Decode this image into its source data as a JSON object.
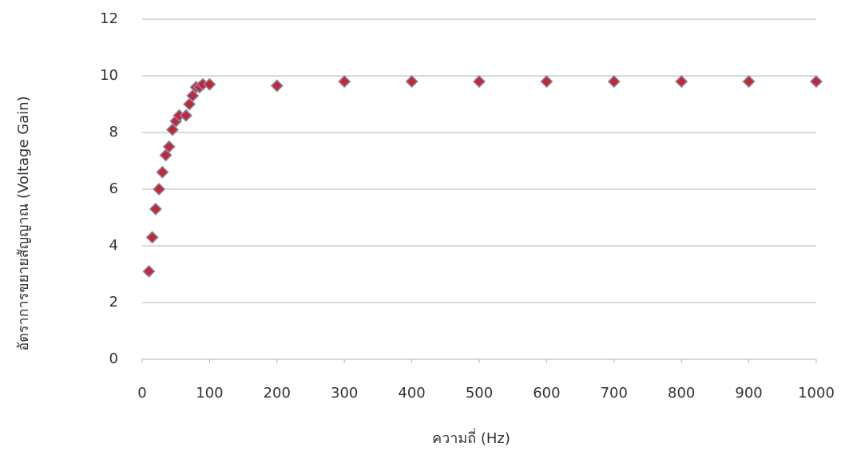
{
  "chart_data": {
    "type": "scatter",
    "x_label": "ความถี่ (Hz)",
    "y_label": "อัตราการขยายสัญญาณ (Voltage Gain)",
    "x": [
      10,
      15,
      20,
      25,
      30,
      35,
      40,
      45,
      50,
      55,
      65,
      70,
      75,
      80,
      85,
      90,
      100,
      200,
      300,
      400,
      500,
      600,
      700,
      800,
      900,
      1000
    ],
    "values": [
      3.1,
      4.3,
      5.3,
      6.0,
      6.6,
      7.2,
      7.5,
      8.1,
      8.4,
      8.6,
      8.6,
      9.0,
      9.3,
      9.6,
      9.6,
      9.7,
      9.7,
      9.65,
      9.8,
      9.8,
      9.8,
      9.8,
      9.8,
      9.8,
      9.8,
      9.8
    ],
    "color": "#c0283c",
    "xlim": [
      0,
      1000
    ],
    "xticks": [
      0,
      100,
      200,
      300,
      400,
      500,
      600,
      700,
      800,
      900,
      1000
    ],
    "ylim": [
      0,
      12
    ],
    "yticks": [
      0,
      2,
      4,
      6,
      8,
      10,
      12
    ],
    "grid": true
  }
}
